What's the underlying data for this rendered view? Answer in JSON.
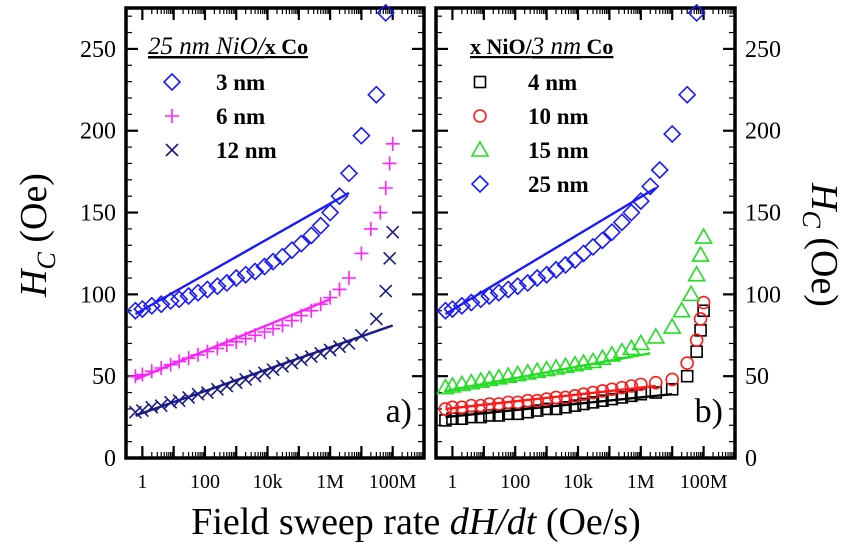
{
  "figure": {
    "xlabel_prefix": "Field sweep rate ",
    "xlabel_var": "dH/dt",
    "xlabel_unit": " (Oe/s)",
    "ylabel_var": "H",
    "ylabel_sub": "C",
    "ylabel_unit": " (Oe)"
  },
  "chart_data": [
    {
      "type": "scatter",
      "panel_label": "a)",
      "legend_title": {
        "thickness": "25 nm NiO/",
        "variable": "x Co"
      },
      "x_scale": "log",
      "xlim": [
        0.3,
        1000000000
      ],
      "ylim": [
        0,
        275
      ],
      "x_ticks": [
        1,
        100,
        10000,
        1000000,
        100000000
      ],
      "x_tick_labels": [
        "1",
        "100",
        "10k",
        "1M",
        "100M"
      ],
      "y_ticks": [
        0,
        50,
        100,
        150,
        200,
        250
      ],
      "y_tick_labels": [
        "0",
        "50",
        "100",
        "150",
        "200",
        "250"
      ],
      "y_tick_side": "left",
      "series": [
        {
          "name": "3 nm",
          "marker": "diamond",
          "color": "#1a1aff",
          "x": [
            0.6,
            1,
            2,
            4,
            8,
            15,
            30,
            60,
            120,
            250,
            500,
            1000,
            2000,
            4000,
            8000,
            15000,
            30000,
            60000,
            120000,
            250000,
            500000,
            1000000,
            2000000,
            4000000,
            10000000,
            30000000,
            60000000
          ],
          "y": [
            90,
            91,
            93,
            94,
            96,
            97,
            99,
            101,
            103,
            105,
            107,
            110,
            112,
            114,
            117,
            120,
            123,
            127,
            131,
            136,
            142,
            150,
            160,
            174,
            197,
            222,
            272
          ],
          "fit": {
            "x": [
              0.6,
              4000000
            ],
            "y": [
              88,
              162
            ]
          }
        },
        {
          "name": "6 nm",
          "marker": "plus",
          "color": "#ff22ff",
          "x": [
            0.6,
            1,
            2,
            4,
            8,
            15,
            30,
            60,
            120,
            250,
            500,
            1000,
            2000,
            4000,
            8000,
            15000,
            30000,
            60000,
            120000,
            250000,
            500000,
            1000000,
            2000000,
            4000000,
            10000000,
            20000000,
            40000000,
            60000000,
            80000000,
            100000000
          ],
          "y": [
            50,
            51,
            53,
            55,
            57,
            59,
            61,
            63,
            65,
            67,
            69,
            71,
            73,
            75,
            77,
            79,
            81,
            84,
            87,
            90,
            94,
            98,
            103,
            110,
            125,
            140,
            150,
            165,
            180,
            192
          ],
          "fit": {
            "x": [
              0.6,
              1000000
            ],
            "y": [
              48,
              97
            ]
          }
        },
        {
          "name": "12 nm",
          "marker": "cross",
          "color": "#1a1a88",
          "x": [
            0.6,
            1,
            2,
            4,
            8,
            15,
            30,
            60,
            120,
            250,
            500,
            1000,
            2000,
            4000,
            8000,
            15000,
            30000,
            60000,
            120000,
            250000,
            500000,
            1000000,
            2000000,
            4000000,
            10000000,
            30000000,
            60000000,
            80000000,
            100000000
          ],
          "y": [
            28,
            29,
            31,
            32,
            34,
            35,
            37,
            39,
            40,
            42,
            44,
            46,
            48,
            50,
            52,
            54,
            56,
            58,
            60,
            62,
            64,
            66,
            68,
            70,
            75,
            85,
            102,
            122,
            138
          ],
          "fit": {
            "x": [
              0.6,
              100000000
            ],
            "y": [
              26,
              81
            ]
          }
        }
      ]
    },
    {
      "type": "scatter",
      "panel_label": "b)",
      "legend_title": {
        "variable": "x NiO/",
        "thickness": "3 nm",
        "suffix": " Co"
      },
      "x_scale": "log",
      "xlim": [
        0.3,
        1000000000
      ],
      "ylim": [
        0,
        275
      ],
      "x_ticks": [
        1,
        100,
        10000,
        1000000,
        100000000
      ],
      "x_tick_labels": [
        "1",
        "100",
        "10k",
        "1M",
        "100M"
      ],
      "y_ticks": [
        0,
        50,
        100,
        150,
        200,
        250
      ],
      "y_tick_labels": [
        "0",
        "50",
        "100",
        "150",
        "200",
        "250"
      ],
      "y_tick_side": "right",
      "series": [
        {
          "name": "4 nm",
          "marker": "square",
          "color": "#000000",
          "x": [
            0.6,
            1,
            2,
            4,
            8,
            15,
            30,
            60,
            120,
            250,
            500,
            1000,
            2000,
            4000,
            8000,
            15000,
            30000,
            60000,
            120000,
            250000,
            500000,
            1000000,
            3000000,
            10000000,
            30000000,
            60000000,
            80000000,
            100000000
          ],
          "y": [
            23,
            24,
            24,
            25,
            25,
            26,
            26,
            27,
            27,
            28,
            29,
            30,
            30,
            31,
            32,
            33,
            34,
            35,
            36,
            37,
            38,
            39,
            40,
            42,
            50,
            65,
            78,
            90
          ],
          "fit": {
            "x": [
              0.6,
              10000000
            ],
            "y": [
              25,
              39
            ]
          }
        },
        {
          "name": "10 nm",
          "marker": "circle",
          "color": "#ff1a1a",
          "x": [
            0.6,
            1,
            2,
            4,
            8,
            15,
            30,
            60,
            120,
            250,
            500,
            1000,
            2000,
            4000,
            8000,
            15000,
            30000,
            60000,
            120000,
            250000,
            500000,
            1000000,
            3000000,
            10000000,
            30000000,
            60000000,
            80000000,
            100000000
          ],
          "y": [
            30,
            31,
            31,
            32,
            32,
            33,
            33,
            34,
            34,
            35,
            35,
            36,
            37,
            37,
            38,
            39,
            40,
            41,
            42,
            43,
            44,
            45,
            46,
            48,
            58,
            72,
            85,
            95
          ],
          "fit": {
            "x": [
              0.6,
              3000000
            ],
            "y": [
              30,
              44
            ]
          }
        },
        {
          "name": "15 nm",
          "marker": "triangle",
          "color": "#22dd22",
          "x": [
            0.6,
            1,
            2,
            4,
            8,
            15,
            30,
            60,
            120,
            250,
            500,
            1000,
            2000,
            4000,
            8000,
            15000,
            30000,
            60000,
            120000,
            250000,
            500000,
            1000000,
            3000000,
            10000000,
            20000000,
            40000000,
            60000000,
            80000000,
            100000000
          ],
          "y": [
            43,
            44,
            45,
            46,
            47,
            48,
            49,
            50,
            51,
            52,
            53,
            54,
            55,
            56,
            57,
            58,
            59,
            61,
            63,
            65,
            67,
            70,
            74,
            80,
            90,
            100,
            112,
            124,
            135
          ],
          "fit": {
            "x": [
              0.6,
              2000000
            ],
            "y": [
              41,
              64
            ]
          }
        },
        {
          "name": "25 nm",
          "marker": "diamond",
          "color": "#1a1aff",
          "x": [
            0.6,
            1,
            2,
            4,
            8,
            15,
            30,
            60,
            120,
            250,
            500,
            1000,
            2000,
            4000,
            8000,
            15000,
            30000,
            60000,
            120000,
            250000,
            500000,
            1000000,
            2000000,
            4000000,
            10000000,
            30000000,
            60000000
          ],
          "y": [
            90,
            91,
            93,
            95,
            97,
            99,
            101,
            103,
            105,
            107,
            110,
            112,
            115,
            118,
            121,
            125,
            129,
            133,
            138,
            144,
            150,
            157,
            166,
            176,
            198,
            222,
            272
          ],
          "fit": {
            "x": [
              0.6,
              3000000
            ],
            "y": [
              88,
              165
            ]
          }
        }
      ]
    }
  ]
}
